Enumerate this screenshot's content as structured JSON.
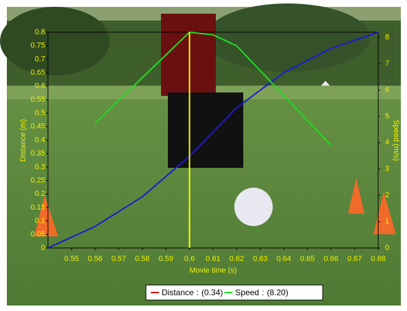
{
  "chart_data": {
    "type": "line",
    "xlabel": "Movie time (s)",
    "ylabel": "Distance (m)",
    "y2label": "Speed (m/s)",
    "xlim": [
      0.54,
      0.68
    ],
    "xticks": [
      0.55,
      0.56,
      0.57,
      0.58,
      0.59,
      0.6,
      0.61,
      0.62,
      0.63,
      0.64,
      0.65,
      0.66,
      0.67,
      0.68
    ],
    "ylim": [
      0,
      0.8
    ],
    "yticks": [
      0,
      0.05,
      0.1,
      0.15,
      0.2,
      0.25,
      0.3,
      0.35,
      0.4,
      0.45,
      0.5,
      0.55,
      0.6,
      0.65,
      0.7,
      0.75,
      0.8
    ],
    "y2lim": [
      0,
      8.2
    ],
    "y2ticks": [
      0,
      1,
      2,
      3,
      4,
      5,
      6,
      7,
      8
    ],
    "series": [
      {
        "name": "Distance",
        "color": "#1a1ad0",
        "x": [
          0.54,
          0.56,
          0.58,
          0.6,
          0.62,
          0.64,
          0.66,
          0.68
        ],
        "values": [
          0,
          0.08,
          0.19,
          0.34,
          0.52,
          0.65,
          0.74,
          0.8
        ]
      },
      {
        "name": "Speed",
        "color": "#22dd22",
        "axis": "y2",
        "x": [
          0.56,
          0.6,
          0.61,
          0.62,
          0.66
        ],
        "values": [
          4.74,
          8.2,
          8.1,
          7.68,
          3.9
        ]
      }
    ],
    "cursor": {
      "x": 0.6,
      "color": "#ffff00",
      "separator": ":",
      "readouts": [
        "(0.34)",
        "(8.20)"
      ]
    }
  }
}
